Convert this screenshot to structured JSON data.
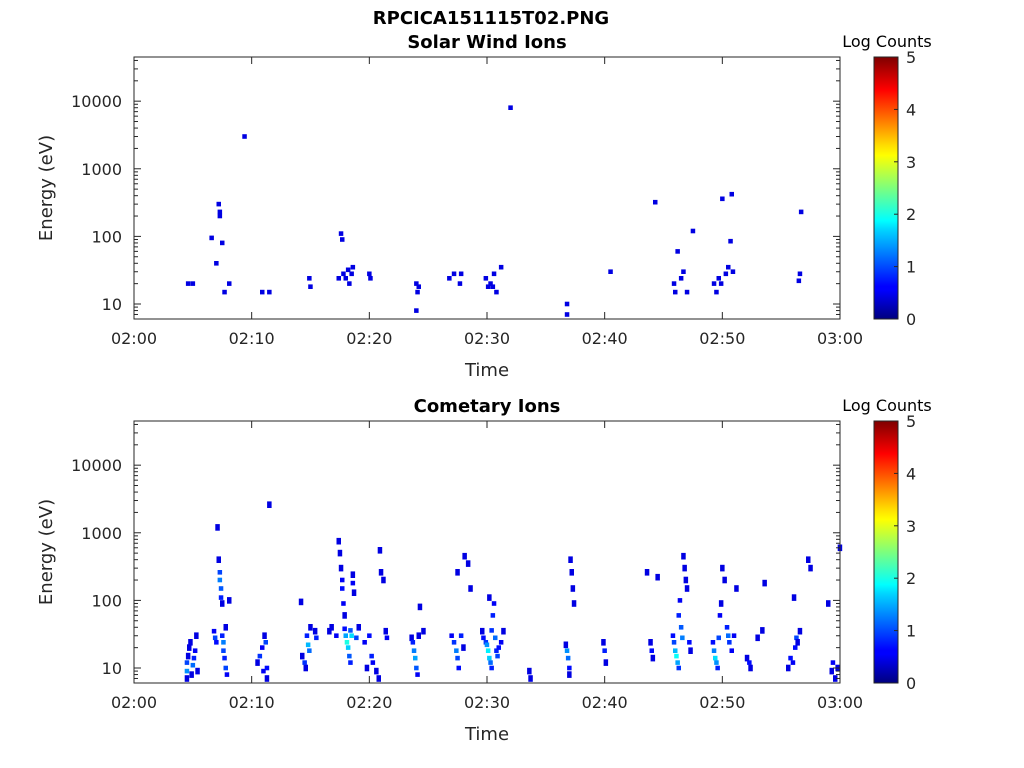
{
  "figure": {
    "filename": "RPCICA151115T02.PNG"
  },
  "chart_data": [
    {
      "type": "heatmap",
      "title": "Solar Wind Ions",
      "xlabel": "Time",
      "ylabel": "Energy (eV)",
      "x_ticks": [
        "02:00",
        "02:10",
        "02:20",
        "02:30",
        "02:40",
        "02:50",
        "03:00"
      ],
      "x_range_minutes": [
        0,
        60
      ],
      "y_scale": "log",
      "y_range": [
        6,
        45000
      ],
      "y_ticks": [
        10,
        100,
        1000,
        10000
      ],
      "y_tick_labels": [
        "10",
        "100",
        "1000",
        "10000"
      ],
      "colorbar": {
        "label": "Log Counts",
        "range": [
          0,
          5
        ],
        "ticks": [
          "0",
          "1",
          "2",
          "3",
          "4",
          "5"
        ],
        "colormap": "jet"
      },
      "cells": [
        [
          4.6,
          20,
          0.3
        ],
        [
          5.0,
          20,
          0.3
        ],
        [
          6.6,
          95,
          0.3
        ],
        [
          7.0,
          40,
          0.3
        ],
        [
          7.2,
          300,
          0.3
        ],
        [
          7.3,
          230,
          0.3
        ],
        [
          7.3,
          200,
          0.3
        ],
        [
          7.5,
          80,
          0.3
        ],
        [
          7.7,
          15,
          0.3
        ],
        [
          8.1,
          20,
          0.3
        ],
        [
          9.4,
          3000,
          0.3
        ],
        [
          10.9,
          15,
          0.3
        ],
        [
          11.5,
          15,
          0.3
        ],
        [
          14.9,
          24,
          0.3
        ],
        [
          15.0,
          18,
          0.3
        ],
        [
          17.4,
          24,
          0.3
        ],
        [
          17.6,
          110,
          0.3
        ],
        [
          17.7,
          90,
          0.3
        ],
        [
          17.8,
          28,
          0.3
        ],
        [
          18.0,
          24,
          0.3
        ],
        [
          18.2,
          32,
          0.3
        ],
        [
          18.3,
          20,
          0.3
        ],
        [
          18.5,
          28,
          0.3
        ],
        [
          18.6,
          35,
          0.3
        ],
        [
          20.0,
          28,
          0.3
        ],
        [
          20.1,
          24,
          0.3
        ],
        [
          24.0,
          20,
          0.3
        ],
        [
          24.0,
          8,
          0.3
        ],
        [
          24.1,
          15,
          0.3
        ],
        [
          24.2,
          18,
          0.3
        ],
        [
          26.8,
          24,
          0.3
        ],
        [
          27.2,
          28,
          0.3
        ],
        [
          27.7,
          20,
          0.3
        ],
        [
          27.8,
          28,
          0.3
        ],
        [
          29.9,
          24,
          0.3
        ],
        [
          30.1,
          18,
          0.3
        ],
        [
          30.3,
          20,
          0.3
        ],
        [
          30.5,
          18,
          0.3
        ],
        [
          30.6,
          28,
          0.3
        ],
        [
          30.8,
          15,
          0.3
        ],
        [
          31.2,
          35,
          0.3
        ],
        [
          32.0,
          8000,
          0.3
        ],
        [
          36.8,
          10,
          0.3
        ],
        [
          36.8,
          7,
          0.3
        ],
        [
          40.5,
          30,
          0.3
        ],
        [
          44.3,
          320,
          0.3
        ],
        [
          45.9,
          20,
          0.3
        ],
        [
          46.0,
          15,
          0.3
        ],
        [
          46.2,
          60,
          0.3
        ],
        [
          46.5,
          24,
          0.3
        ],
        [
          46.7,
          30,
          0.3
        ],
        [
          47.0,
          15,
          0.3
        ],
        [
          47.5,
          120,
          0.3
        ],
        [
          49.3,
          20,
          0.3
        ],
        [
          49.5,
          15,
          0.3
        ],
        [
          49.7,
          24,
          0.3
        ],
        [
          49.9,
          20,
          0.3
        ],
        [
          50.0,
          360,
          0.3
        ],
        [
          50.3,
          28,
          0.3
        ],
        [
          50.5,
          35,
          0.3
        ],
        [
          50.7,
          85,
          0.3
        ],
        [
          50.8,
          420,
          0.3
        ],
        [
          50.9,
          30,
          0.3
        ],
        [
          56.6,
          28,
          0.3
        ],
        [
          56.7,
          230,
          0.3
        ],
        [
          56.5,
          22,
          0.3
        ]
      ]
    },
    {
      "type": "heatmap",
      "title": "Cometary Ions",
      "xlabel": "Time",
      "ylabel": "Energy (eV)",
      "x_ticks": [
        "02:00",
        "02:10",
        "02:20",
        "02:30",
        "02:40",
        "02:50",
        "03:00"
      ],
      "x_range_minutes": [
        0,
        60
      ],
      "y_scale": "log",
      "y_range": [
        6,
        45000
      ],
      "y_ticks": [
        10,
        100,
        1000,
        10000
      ],
      "y_tick_labels": [
        "10",
        "100",
        "1000",
        "10000"
      ],
      "colorbar": {
        "label": "Log Counts",
        "range": [
          0,
          5
        ],
        "ticks": [
          "0",
          "1",
          "2",
          "3",
          "4",
          "5"
        ],
        "colormap": "jet"
      },
      "cells": [
        [
          4.5,
          7,
          0.3
        ],
        [
          4.5,
          9,
          1.2
        ],
        [
          4.5,
          12,
          0.8
        ],
        [
          4.6,
          15,
          0.3
        ],
        [
          4.7,
          20,
          0.3
        ],
        [
          4.8,
          24,
          0.3
        ],
        [
          4.9,
          8,
          0.3
        ],
        [
          5.0,
          11,
          1.0
        ],
        [
          5.1,
          14,
          0.6
        ],
        [
          5.2,
          18,
          0.4
        ],
        [
          5.3,
          30,
          0.3
        ],
        [
          5.4,
          9,
          0.3
        ],
        [
          6.8,
          35,
          0.4
        ],
        [
          6.9,
          28,
          0.8
        ],
        [
          7.0,
          24,
          0.5
        ],
        [
          7.1,
          1200,
          0.3
        ],
        [
          7.2,
          400,
          0.3
        ],
        [
          7.3,
          260,
          0.8
        ],
        [
          7.3,
          200,
          1.1
        ],
        [
          7.4,
          150,
          0.9
        ],
        [
          7.4,
          110,
          0.6
        ],
        [
          7.5,
          90,
          0.3
        ],
        [
          7.5,
          30,
          0.6
        ],
        [
          7.6,
          24,
          1.1
        ],
        [
          7.6,
          18,
          0.8
        ],
        [
          7.7,
          14,
          0.6
        ],
        [
          7.8,
          10,
          0.8
        ],
        [
          7.9,
          8,
          0.4
        ],
        [
          7.8,
          40,
          0.3
        ],
        [
          8.1,
          100,
          0.3
        ],
        [
          10.5,
          12,
          0.3
        ],
        [
          10.7,
          15,
          0.7
        ],
        [
          10.9,
          20,
          0.4
        ],
        [
          11.0,
          9,
          0.4
        ],
        [
          11.1,
          30,
          0.3
        ],
        [
          11.2,
          24,
          0.8
        ],
        [
          11.3,
          10,
          0.5
        ],
        [
          11.3,
          7,
          0.3
        ],
        [
          11.5,
          2600,
          0.3
        ],
        [
          14.2,
          95,
          0.3
        ],
        [
          14.3,
          15,
          0.3
        ],
        [
          14.5,
          12,
          0.7
        ],
        [
          14.6,
          10,
          0.3
        ],
        [
          14.7,
          30,
          0.6
        ],
        [
          14.8,
          22,
          1.4
        ],
        [
          14.9,
          18,
          1.0
        ],
        [
          15.0,
          40,
          0.3
        ],
        [
          15.4,
          35,
          0.3
        ],
        [
          15.5,
          28,
          0.6
        ],
        [
          16.6,
          35,
          0.3
        ],
        [
          16.8,
          40,
          0.3
        ],
        [
          17.2,
          30,
          0.4
        ],
        [
          17.4,
          750,
          0.3
        ],
        [
          17.5,
          500,
          0.3
        ],
        [
          17.6,
          300,
          0.3
        ],
        [
          17.7,
          200,
          0.4
        ],
        [
          17.7,
          150,
          0.5
        ],
        [
          17.8,
          90,
          0.4
        ],
        [
          17.9,
          60,
          0.3
        ],
        [
          17.9,
          38,
          0.5
        ],
        [
          18.0,
          30,
          1.3
        ],
        [
          18.1,
          24,
          1.9
        ],
        [
          18.2,
          20,
          1.5
        ],
        [
          18.3,
          15,
          0.9
        ],
        [
          18.4,
          12,
          0.6
        ],
        [
          18.4,
          36,
          0.9
        ],
        [
          18.5,
          30,
          1.6
        ],
        [
          18.6,
          240,
          0.3
        ],
        [
          18.6,
          180,
          0.4
        ],
        [
          18.7,
          130,
          0.3
        ],
        [
          18.9,
          28,
          0.8
        ],
        [
          19.1,
          40,
          0.3
        ],
        [
          19.6,
          24,
          0.4
        ],
        [
          19.8,
          10,
          0.3
        ],
        [
          20.0,
          30,
          0.5
        ],
        [
          20.2,
          15,
          0.6
        ],
        [
          20.3,
          12,
          0.4
        ],
        [
          20.6,
          9,
          0.3
        ],
        [
          20.8,
          7,
          0.3
        ],
        [
          20.9,
          550,
          0.3
        ],
        [
          21.0,
          260,
          0.3
        ],
        [
          21.2,
          200,
          0.3
        ],
        [
          21.4,
          35,
          0.3
        ],
        [
          21.5,
          28,
          0.4
        ],
        [
          23.6,
          28,
          0.3
        ],
        [
          23.7,
          24,
          0.6
        ],
        [
          23.8,
          18,
          1.1
        ],
        [
          23.9,
          14,
          1.3
        ],
        [
          24.0,
          10,
          0.9
        ],
        [
          24.1,
          8,
          0.4
        ],
        [
          24.2,
          30,
          0.3
        ],
        [
          24.3,
          80,
          0.3
        ],
        [
          24.6,
          35,
          0.3
        ],
        [
          27.0,
          30,
          0.4
        ],
        [
          27.2,
          24,
          0.7
        ],
        [
          27.4,
          18,
          1.1
        ],
        [
          27.5,
          14,
          0.8
        ],
        [
          27.6,
          10,
          0.5
        ],
        [
          27.8,
          30,
          0.6
        ],
        [
          28.0,
          20,
          0.3
        ],
        [
          28.1,
          450,
          0.3
        ],
        [
          28.4,
          350,
          0.3
        ],
        [
          27.5,
          260,
          0.3
        ],
        [
          28.6,
          150,
          0.3
        ],
        [
          29.6,
          35,
          0.3
        ],
        [
          29.7,
          28,
          0.5
        ],
        [
          29.9,
          24,
          0.7
        ],
        [
          30.0,
          22,
          1.2
        ],
        [
          30.1,
          18,
          1.7
        ],
        [
          30.2,
          14,
          1.5
        ],
        [
          30.3,
          12,
          1.0
        ],
        [
          30.4,
          10,
          0.6
        ],
        [
          30.4,
          36,
          0.7
        ],
        [
          30.5,
          60,
          0.6
        ],
        [
          30.6,
          90,
          0.4
        ],
        [
          30.7,
          28,
          1.0
        ],
        [
          30.8,
          18,
          0.6
        ],
        [
          30.9,
          15,
          0.8
        ],
        [
          31.0,
          20,
          0.5
        ],
        [
          31.2,
          24,
          0.4
        ],
        [
          31.4,
          35,
          0.3
        ],
        [
          30.2,
          110,
          0.3
        ],
        [
          33.6,
          9,
          0.3
        ],
        [
          33.7,
          7,
          0.3
        ],
        [
          36.7,
          22,
          0.3
        ],
        [
          36.8,
          18,
          1.2
        ],
        [
          36.9,
          14,
          1.0
        ],
        [
          37.0,
          10,
          0.5
        ],
        [
          37.0,
          8,
          0.3
        ],
        [
          37.1,
          400,
          0.3
        ],
        [
          37.2,
          260,
          0.3
        ],
        [
          37.3,
          150,
          0.3
        ],
        [
          37.4,
          90,
          0.3
        ],
        [
          39.9,
          24,
          0.3
        ],
        [
          40.0,
          18,
          0.6
        ],
        [
          40.1,
          12,
          0.3
        ],
        [
          43.6,
          260,
          0.3
        ],
        [
          43.9,
          24,
          0.3
        ],
        [
          44.0,
          18,
          0.5
        ],
        [
          44.1,
          14,
          0.3
        ],
        [
          44.5,
          220,
          0.3
        ],
        [
          45.8,
          30,
          0.5
        ],
        [
          45.9,
          24,
          0.8
        ],
        [
          46.0,
          18,
          1.4
        ],
        [
          46.1,
          15,
          1.8
        ],
        [
          46.2,
          12,
          1.3
        ],
        [
          46.3,
          10,
          0.7
        ],
        [
          46.3,
          60,
          0.6
        ],
        [
          46.4,
          100,
          0.4
        ],
        [
          46.5,
          40,
          0.9
        ],
        [
          46.6,
          28,
          1.1
        ],
        [
          46.7,
          450,
          0.3
        ],
        [
          46.8,
          300,
          0.3
        ],
        [
          46.9,
          200,
          0.3
        ],
        [
          47.0,
          150,
          0.3
        ],
        [
          47.2,
          24,
          0.5
        ],
        [
          47.3,
          18,
          0.3
        ],
        [
          49.2,
          24,
          0.5
        ],
        [
          49.3,
          18,
          1.1
        ],
        [
          49.4,
          14,
          1.6
        ],
        [
          49.5,
          12,
          1.2
        ],
        [
          49.6,
          10,
          0.6
        ],
        [
          49.7,
          28,
          0.8
        ],
        [
          49.8,
          60,
          0.4
        ],
        [
          49.9,
          90,
          0.3
        ],
        [
          50.0,
          300,
          0.3
        ],
        [
          50.2,
          200,
          0.3
        ],
        [
          50.4,
          40,
          0.6
        ],
        [
          50.5,
          30,
          1.0
        ],
        [
          50.6,
          24,
          0.7
        ],
        [
          50.8,
          18,
          0.4
        ],
        [
          51.0,
          30,
          0.4
        ],
        [
          51.2,
          150,
          0.3
        ],
        [
          52.1,
          14,
          0.3
        ],
        [
          52.3,
          12,
          0.5
        ],
        [
          52.4,
          10,
          0.3
        ],
        [
          53.0,
          28,
          0.3
        ],
        [
          53.4,
          36,
          0.3
        ],
        [
          53.6,
          180,
          0.3
        ],
        [
          55.6,
          10,
          0.3
        ],
        [
          55.8,
          14,
          0.5
        ],
        [
          56.0,
          12,
          0.4
        ],
        [
          56.1,
          110,
          0.3
        ],
        [
          56.2,
          20,
          0.5
        ],
        [
          56.3,
          28,
          0.8
        ],
        [
          56.4,
          24,
          0.3
        ],
        [
          56.6,
          35,
          0.3
        ],
        [
          57.3,
          400,
          0.3
        ],
        [
          57.5,
          300,
          0.3
        ],
        [
          59.0,
          90,
          0.3
        ],
        [
          59.3,
          9,
          0.3
        ],
        [
          59.4,
          12,
          0.4
        ],
        [
          59.6,
          7,
          0.3
        ],
        [
          59.8,
          10,
          0.3
        ],
        [
          60.0,
          600,
          0.3
        ]
      ]
    }
  ]
}
